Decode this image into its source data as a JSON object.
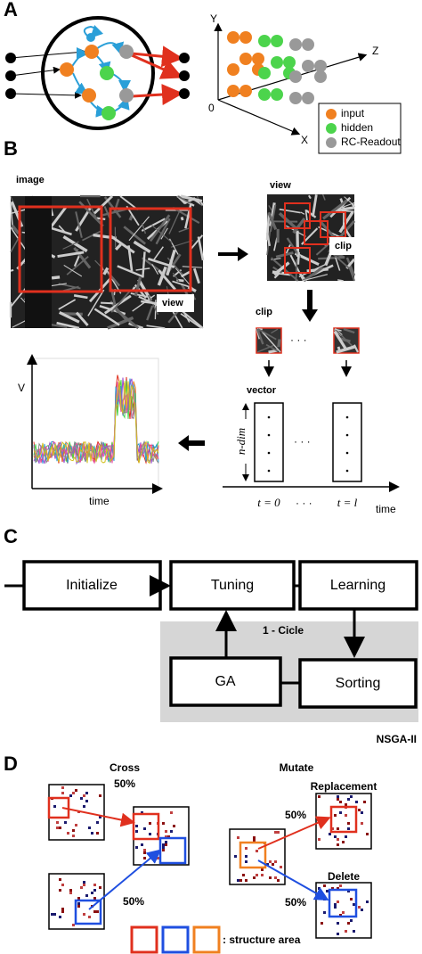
{
  "panels": {
    "a": {
      "label": "A",
      "axes": {
        "y": "Y",
        "z": "Z",
        "origin": "0",
        "x": "X"
      },
      "legend": [
        "input",
        "hidden",
        "RC-Readout"
      ]
    },
    "b": {
      "label": "B",
      "image": "image",
      "view_main": "view",
      "view_crop": "view",
      "clip_crop": "clip",
      "clip_row": "clip",
      "vector": "vector",
      "ellipsis": "· · ·",
      "y_axis": "V",
      "x_axis": "time",
      "dim": "n-dim",
      "t_start": "t = 0",
      "t_end": "t = l",
      "time": "time"
    },
    "c": {
      "label": "C",
      "steps": {
        "initialize": "Initialize",
        "tuning": "Tuning",
        "learning": "Learning",
        "ga": "GA",
        "sorting": "Sorting"
      },
      "cycle": "1 - Cicle",
      "group": "NSGA-II"
    },
    "d": {
      "label": "D",
      "cross": "Cross",
      "mutate": "Mutate",
      "percent": "50%",
      "replacement": "Replacement",
      "delete": "Delete",
      "legend": ": structure area"
    }
  }
}
